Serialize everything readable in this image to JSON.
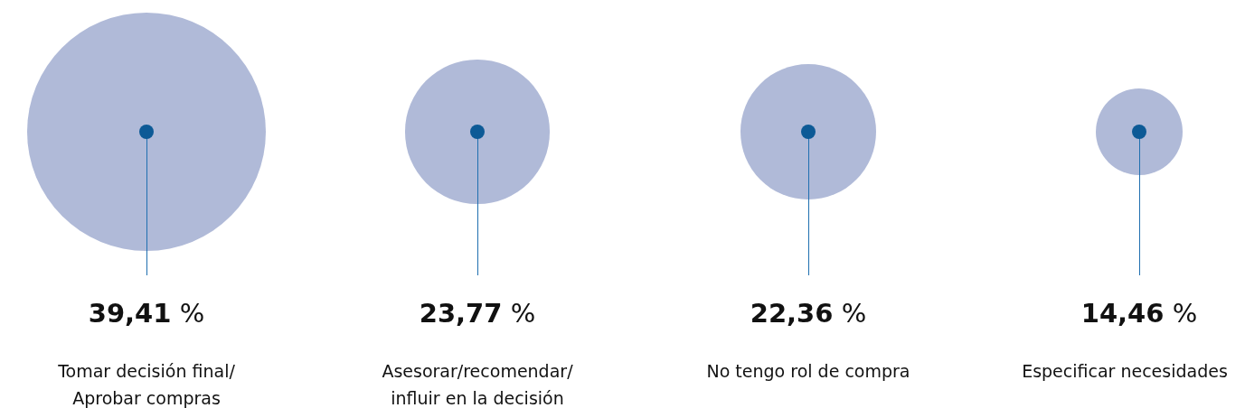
{
  "chart_data": {
    "type": "other",
    "categories": [
      "Tomar decisión final/ Aprobar compras",
      "Asesorar/recomendar/ influir en la decisión",
      "No tengo rol de compra",
      "Especificar necesidades"
    ],
    "values": [
      39.41,
      23.77,
      22.36,
      14.46
    ],
    "value_labels": [
      "39,41 %",
      "23,77 %",
      "22,36 %",
      "14,46 %"
    ],
    "color": "#b0bad8"
  }
}
